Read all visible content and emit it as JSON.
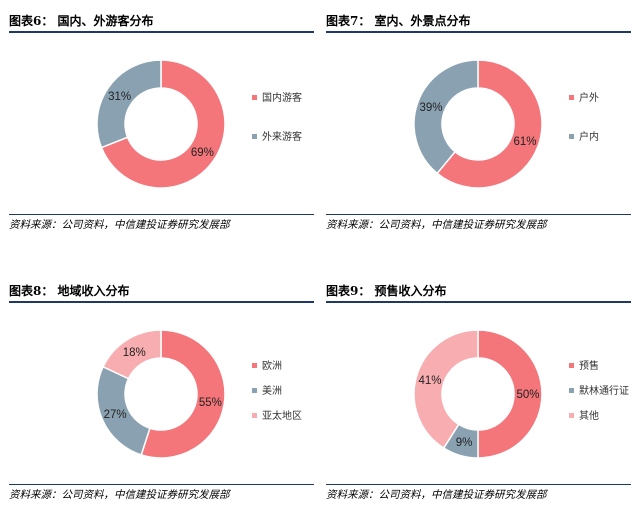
{
  "source_text": "资料来源：公司资料，中信建投证券研究发展部",
  "chart_data": [
    {
      "type": "pie",
      "title": "图表6： 国内、外游客分布",
      "categories": [
        "国内游客",
        "外来游客"
      ],
      "values": [
        69,
        31
      ],
      "labels": [
        "69%",
        "31%"
      ],
      "colors": [
        "#f4757a",
        "#8aa1b2"
      ],
      "legend": "right"
    },
    {
      "type": "pie",
      "title": "图表7： 室内、外景点分布",
      "categories": [
        "户外",
        "户内"
      ],
      "values": [
        61,
        39
      ],
      "labels": [
        "61%",
        "39%"
      ],
      "colors": [
        "#f4757a",
        "#8aa1b2"
      ],
      "legend": "right"
    },
    {
      "type": "pie",
      "title": "图表8： 地域收入分布",
      "categories": [
        "欧洲",
        "美洲",
        "亚太地区"
      ],
      "values": [
        55,
        27,
        18
      ],
      "labels": [
        "55%",
        "27%",
        "18%"
      ],
      "colors": [
        "#f4757a",
        "#8aa1b2",
        "#f8adb1"
      ],
      "legend": "right"
    },
    {
      "type": "pie",
      "title": "图表9： 预售收入分布",
      "categories": [
        "预售",
        "默林通行证",
        "其他"
      ],
      "values": [
        50,
        9,
        41
      ],
      "labels": [
        "50%",
        "9%",
        "41%"
      ],
      "colors": [
        "#f4757a",
        "#8aa1b2",
        "#f8adb1"
      ],
      "legend": "right"
    }
  ]
}
